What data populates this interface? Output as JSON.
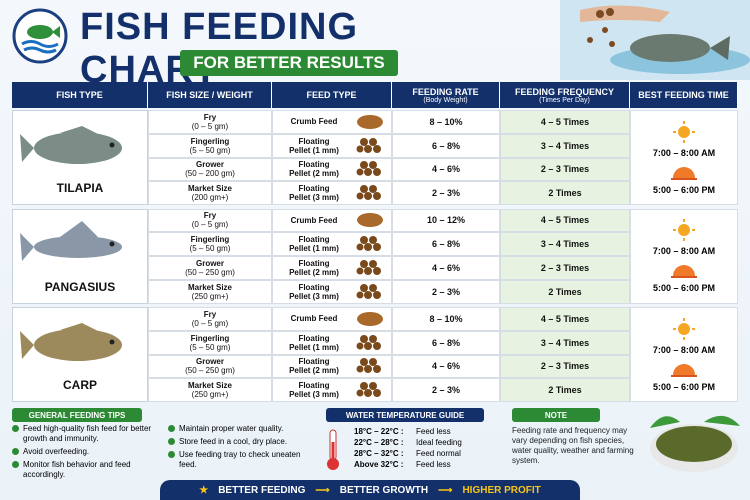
{
  "header": {
    "title": "FISH FEEDING CHART",
    "subtitle": "FOR BETTER RESULTS"
  },
  "table": {
    "columns": [
      {
        "title": "FISH TYPE"
      },
      {
        "title": "FISH SIZE / WEIGHT"
      },
      {
        "title": "FEED TYPE"
      },
      {
        "title": "FEEDING RATE",
        "sub": "(Body Weight)"
      },
      {
        "title": "FEEDING FREQUENCY",
        "sub": "(Times Per Day)"
      },
      {
        "title": "BEST FEEDING TIME"
      }
    ],
    "groups": [
      {
        "fish": "TILAPIA",
        "times": [
          "7:00 – 8:00 AM",
          "5:00 – 6:00 PM"
        ],
        "rows": [
          {
            "size": "Fry",
            "weight": "(0 – 5 gm)",
            "feed": [
              "Crumb Feed"
            ],
            "rate": "8 – 10%",
            "freq": "4 – 5 Times"
          },
          {
            "size": "Fingerling",
            "weight": "(5 – 50 gm)",
            "feed": [
              "Floating",
              "Pellet (1 mm)"
            ],
            "rate": "6 – 8%",
            "freq": "3 – 4 Times"
          },
          {
            "size": "Grower",
            "weight": "(50 – 200 gm)",
            "feed": [
              "Floating",
              "Pellet (2 mm)"
            ],
            "rate": "4 – 6%",
            "freq": "2 – 3 Times"
          },
          {
            "size": "Market Size",
            "weight": "(200 gm+)",
            "feed": [
              "Floating",
              "Pellet (3 mm)"
            ],
            "rate": "2 – 3%",
            "freq": "2 Times"
          }
        ]
      },
      {
        "fish": "PANGASIUS",
        "times": [
          "7:00 – 8:00 AM",
          "5:00 – 6:00 PM"
        ],
        "rows": [
          {
            "size": "Fry",
            "weight": "(0 – 5 gm)",
            "feed": [
              "Crumb Feed"
            ],
            "rate": "10 – 12%",
            "freq": "4 – 5 Times"
          },
          {
            "size": "Fingerling",
            "weight": "(5 – 50 gm)",
            "feed": [
              "Floating",
              "Pellet (1 mm)"
            ],
            "rate": "6 – 8%",
            "freq": "3 – 4 Times"
          },
          {
            "size": "Grower",
            "weight": "(50 – 250 gm)",
            "feed": [
              "Floating",
              "Pellet (2 mm)"
            ],
            "rate": "4 – 6%",
            "freq": "2 – 3 Times"
          },
          {
            "size": "Market Size",
            "weight": "(250 gm+)",
            "feed": [
              "Floating",
              "Pellet (3 mm)"
            ],
            "rate": "2 – 3%",
            "freq": "2 Times"
          }
        ]
      },
      {
        "fish": "CARP",
        "times": [
          "7:00 – 8:00 AM",
          "5:00 – 6:00 PM"
        ],
        "rows": [
          {
            "size": "Fry",
            "weight": "(0 – 5 gm)",
            "feed": [
              "Crumb Feed"
            ],
            "rate": "8 – 10%",
            "freq": "4 – 5 Times"
          },
          {
            "size": "Fingerling",
            "weight": "(5 – 50 gm)",
            "feed": [
              "Floating",
              "Pellet (1 mm)"
            ],
            "rate": "6 – 8%",
            "freq": "3 – 4 Times"
          },
          {
            "size": "Grower",
            "weight": "(50 – 250 gm)",
            "feed": [
              "Floating",
              "Pellet (2 mm)"
            ],
            "rate": "4 – 6%",
            "freq": "2 – 3 Times"
          },
          {
            "size": "Market Size",
            "weight": "(250 gm+)",
            "feed": [
              "Floating",
              "Pellet (3 mm)"
            ],
            "rate": "2 – 3%",
            "freq": "2 Times"
          }
        ]
      }
    ]
  },
  "tips": {
    "title": "GENERAL FEEDING TIPS",
    "left": [
      "Feed high-quality fish feed for better growth and immunity.",
      "Avoid overfeeding.",
      "Monitor fish behavior and feed accordingly."
    ],
    "right": [
      "Maintain proper water quality.",
      "Store feed in a cool, dry place.",
      "Use feeding tray to check uneaten feed."
    ]
  },
  "water": {
    "title": "WATER TEMPERATURE GUIDE",
    "rows": [
      {
        "temp": "18°C – 22°C :",
        "advice": "Feed less"
      },
      {
        "temp": "22°C – 28°C :",
        "advice": "Ideal feeding"
      },
      {
        "temp": "28°C – 32°C :",
        "advice": "Feed normal"
      },
      {
        "temp": "Above 32°C :",
        "advice": "Feed less"
      }
    ]
  },
  "note": {
    "title": "NOTE",
    "text": "Feeding rate and frequency may vary depending on fish species, water quality, weather and farming system."
  },
  "footer": [
    "BETTER FEEDING",
    "BETTER GROWTH",
    "HIGHER PROFIT"
  ]
}
